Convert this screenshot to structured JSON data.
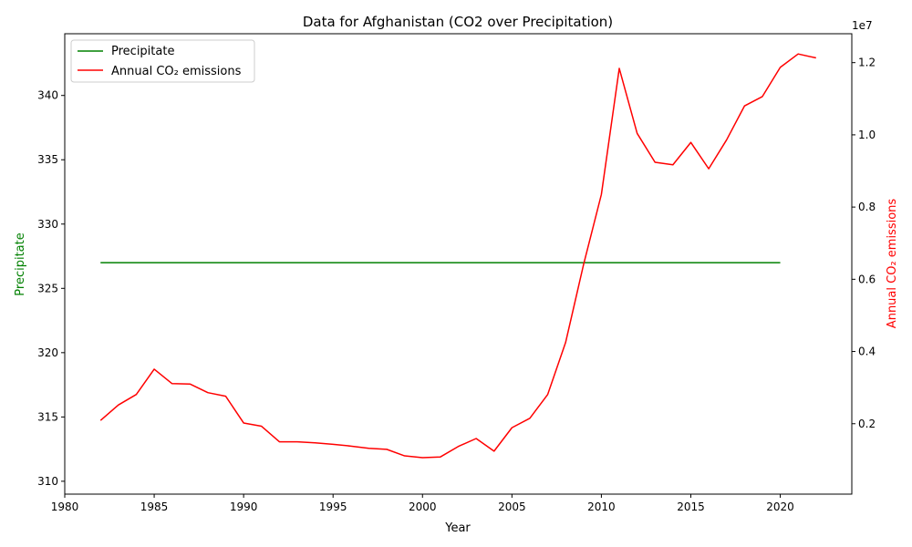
{
  "chart_data": {
    "type": "line",
    "title": "Data for Afghanistan (CO2 over Precipitation)",
    "xlabel": "Year",
    "ylabel_left": "Precipitate",
    "ylabel_right": "Annual CO₂ emissions",
    "right_axis_multiplier": "1e7",
    "xlim": [
      1980,
      2024
    ],
    "ylim_left": [
      309,
      344.8
    ],
    "ylim_right": [
      50000,
      12800000
    ],
    "x_ticks": [
      "1980",
      "1985",
      "1990",
      "1995",
      "2000",
      "2005",
      "2010",
      "2015",
      "2020"
    ],
    "y_left_ticks": [
      "310",
      "315",
      "320",
      "325",
      "330",
      "335",
      "340"
    ],
    "y_right_ticks": [
      "0.2",
      "0.4",
      "0.6",
      "0.8",
      "1.0",
      "1.2"
    ],
    "grid": false,
    "legend_position": "upper-left",
    "colors": {
      "precipitate": "#008000",
      "co2": "#ff0000",
      "axis": "#000000"
    },
    "series": [
      {
        "name": "Precipitate",
        "axis": "left",
        "color": "#008000",
        "x": [
          1982,
          2020
        ],
        "y": [
          327,
          327
        ]
      },
      {
        "name": "Annual CO₂ emissions",
        "axis": "right",
        "color": "#ff0000",
        "x": [
          1982,
          1983,
          1984,
          1985,
          1986,
          1987,
          1988,
          1989,
          1990,
          1991,
          1992,
          1993,
          1994,
          1995,
          1996,
          1997,
          1998,
          1999,
          2000,
          2001,
          2002,
          2003,
          2004,
          2005,
          2006,
          2007,
          2008,
          2009,
          2010,
          2011,
          2012,
          2013,
          2014,
          2015,
          2016,
          2017,
          2018,
          2019,
          2020,
          2021,
          2022
        ],
        "y": [
          2090000,
          2520000,
          2810000,
          3510000,
          3110000,
          3100000,
          2860000,
          2760000,
          2020000,
          1930000,
          1500000,
          1500000,
          1470000,
          1430000,
          1380000,
          1320000,
          1290000,
          1110000,
          1060000,
          1080000,
          1370000,
          1590000,
          1240000,
          1890000,
          2150000,
          2810000,
          4250000,
          6400000,
          8350000,
          11840000,
          10040000,
          9240000,
          9170000,
          9790000,
          9060000,
          9860000,
          10800000,
          11060000,
          11870000,
          12240000,
          12130000
        ]
      }
    ]
  }
}
